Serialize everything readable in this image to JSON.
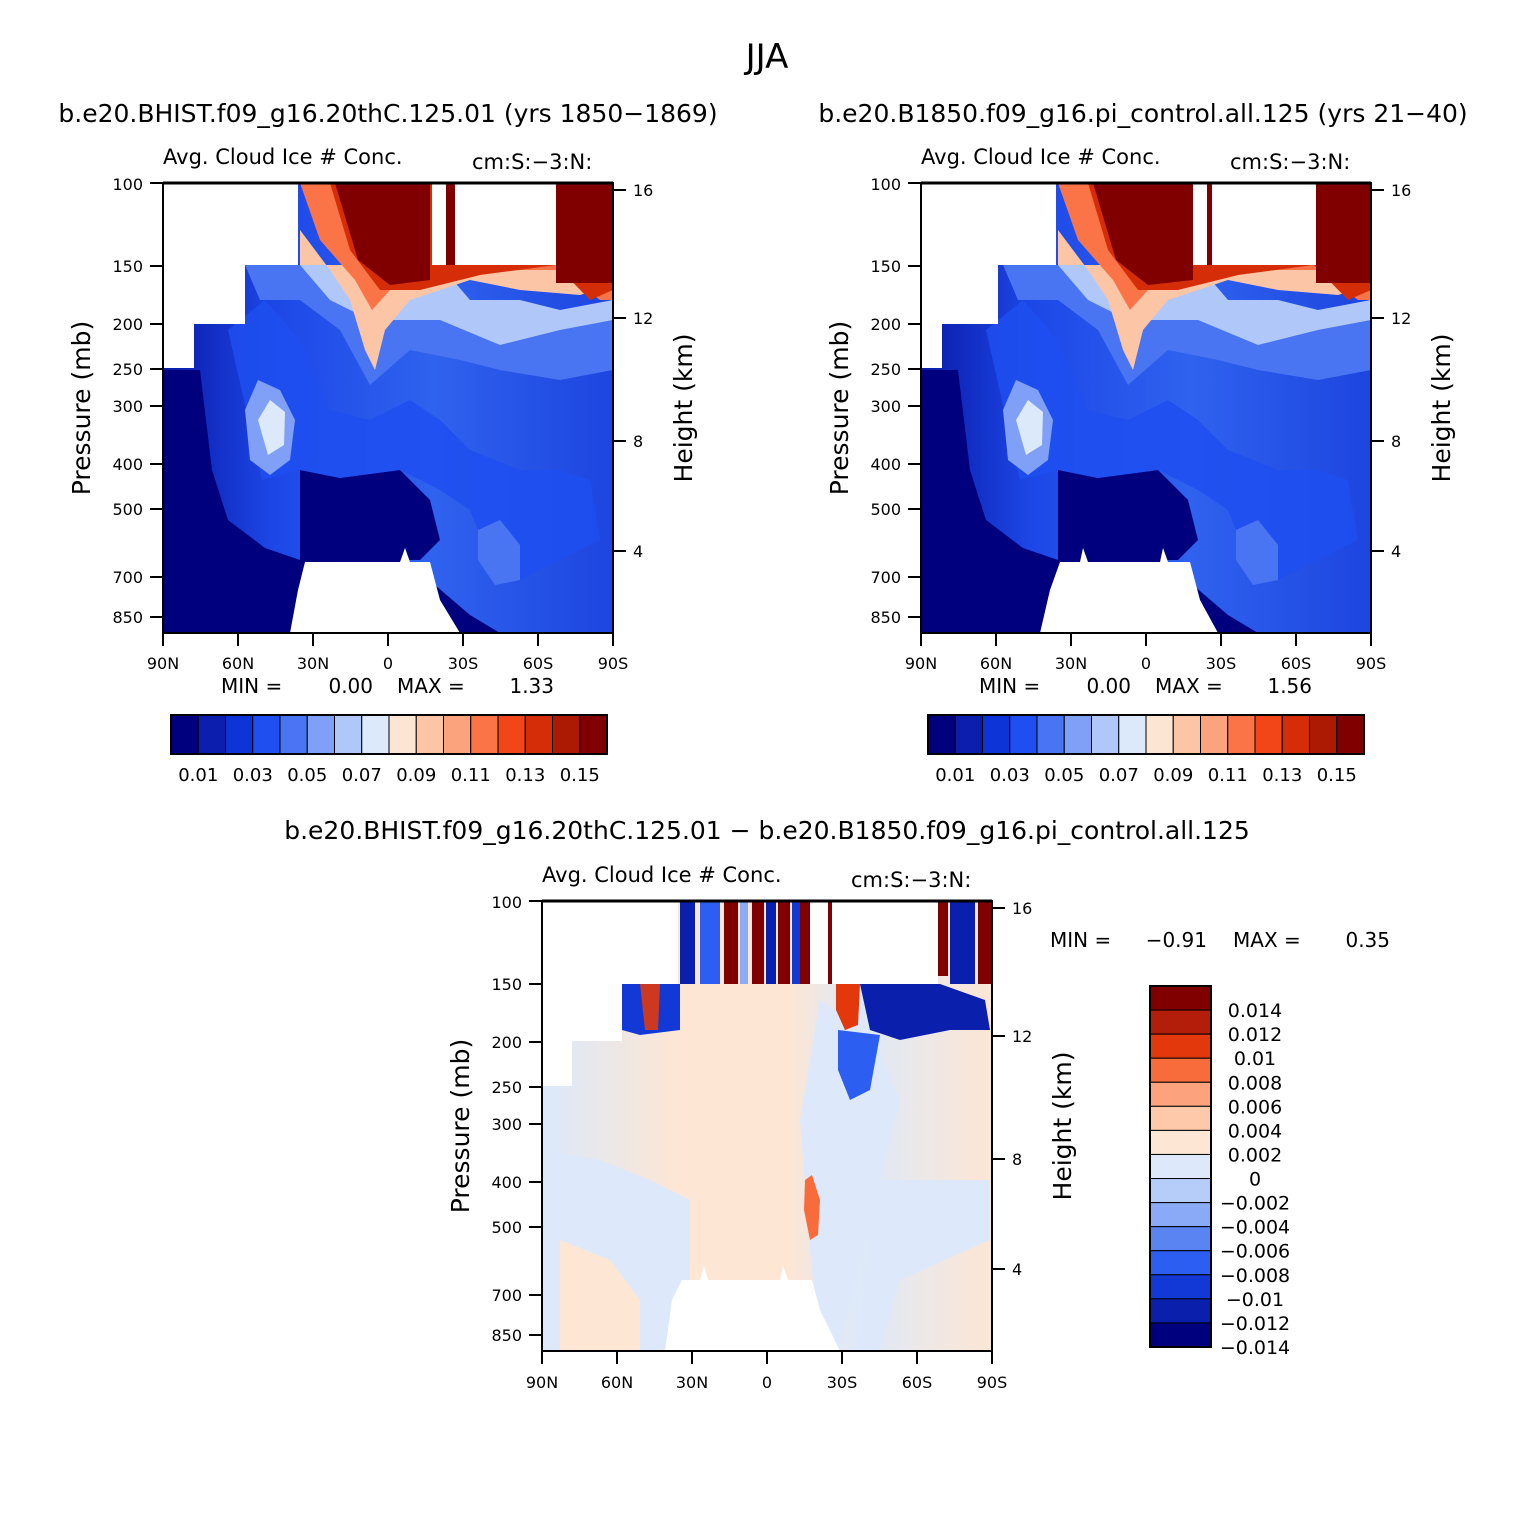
{
  "page_title": "JJA",
  "chart_data": [
    {
      "type": "heatmap",
      "panel": "case",
      "case_title": "b.e20.BHIST.f09_g16.20thC.125.01 (yrs 1850-1869)",
      "field_title": "Avg. Cloud Ice # Conc.",
      "units": "cm:S:-3:N:",
      "xlabel": "",
      "ylabel": "Pressure (mb)",
      "y2label": "Height (km)",
      "x_ticks": [
        "90N",
        "60N",
        "30N",
        "0",
        "30S",
        "60S",
        "90S"
      ],
      "x_range": [
        90,
        -90
      ],
      "y_ticks": [
        100,
        150,
        200,
        250,
        300,
        400,
        500,
        700,
        850
      ],
      "y_range_mb": [
        100,
        900
      ],
      "y2_ticks": [
        16,
        12,
        8,
        4
      ],
      "min_label": "MIN =",
      "min_value": "0.00",
      "max_label": "MAX =",
      "max_value": "1.33",
      "colorbar": {
        "orientation": "horizontal",
        "colors": [
          "#00007f",
          "#0b1eae",
          "#0d34d6",
          "#1f4ff0",
          "#4a75f2",
          "#7fa0f6",
          "#b0c8f9",
          "#dbe9fb",
          "#fde5d3",
          "#fcc5a6",
          "#fba37d",
          "#fb7448",
          "#f24618",
          "#d42d08",
          "#ac1a04",
          "#800000"
        ],
        "labels": [
          "0.01",
          "0.03",
          "0.05",
          "0.07",
          "0.09",
          "0.11",
          "0.13",
          "0.15"
        ]
      },
      "approx_zonal_profile_note": "cloud ice number concentration by latitude and pressure"
    },
    {
      "type": "heatmap",
      "panel": "control",
      "case_title": "b.e20.B1850.f09_g16.pi_control.all.125 (yrs 21-40)",
      "field_title": "Avg. Cloud Ice # Conc.",
      "units": "cm:S:-3:N:",
      "ylabel": "Pressure (mb)",
      "y2label": "Height (km)",
      "x_ticks": [
        "90N",
        "60N",
        "30N",
        "0",
        "30S",
        "60S",
        "90S"
      ],
      "y_ticks": [
        100,
        150,
        200,
        250,
        300,
        400,
        500,
        700,
        850
      ],
      "y2_ticks": [
        16,
        12,
        8,
        4
      ],
      "min_label": "MIN =",
      "min_value": "0.00",
      "max_label": "MAX =",
      "max_value": "1.56",
      "colorbar": {
        "orientation": "horizontal",
        "colors": [
          "#00007f",
          "#0b1eae",
          "#0d34d6",
          "#1f4ff0",
          "#4a75f2",
          "#7fa0f6",
          "#b0c8f9",
          "#dbe9fb",
          "#fde5d3",
          "#fcc5a6",
          "#fba37d",
          "#fb7448",
          "#f24618",
          "#d42d08",
          "#ac1a04",
          "#800000"
        ],
        "labels": [
          "0.01",
          "0.03",
          "0.05",
          "0.07",
          "0.09",
          "0.11",
          "0.13",
          "0.15"
        ]
      }
    },
    {
      "type": "heatmap",
      "panel": "difference",
      "case_title": "b.e20.BHIST.f09_g16.20thC.125.01 - b.e20.B1850.f09_g16.pi_control.all.125",
      "field_title": "Avg. Cloud Ice # Conc.",
      "units": "cm:S:-3:N:",
      "ylabel": "Pressure (mb)",
      "y2label": "Height (km)",
      "x_ticks": [
        "90N",
        "60N",
        "30N",
        "0",
        "30S",
        "60S",
        "90S"
      ],
      "y_ticks": [
        100,
        150,
        200,
        250,
        300,
        400,
        500,
        700,
        850
      ],
      "y2_ticks": [
        16,
        12,
        8,
        4
      ],
      "min_label": "MIN =",
      "min_value": "-0.91",
      "max_label": "MAX =",
      "max_value": "0.35",
      "colorbar": {
        "orientation": "vertical",
        "colors": [
          "#800000",
          "#b21e0a",
          "#e2380c",
          "#f86c3c",
          "#fca37e",
          "#fdc9aa",
          "#fde6d4",
          "#dde9fa",
          "#b6cdf9",
          "#8aa9f6",
          "#5a84f2",
          "#2c5ef1",
          "#1238d6",
          "#0a20ac",
          "#00007f"
        ],
        "labels": [
          "0.014",
          "0.012",
          "0.01",
          "0.008",
          "0.006",
          "0.004",
          "0.002",
          "0",
          "-0.002",
          "-0.004",
          "-0.006",
          "-0.008",
          "-0.01",
          "-0.012",
          "-0.014"
        ]
      }
    }
  ]
}
